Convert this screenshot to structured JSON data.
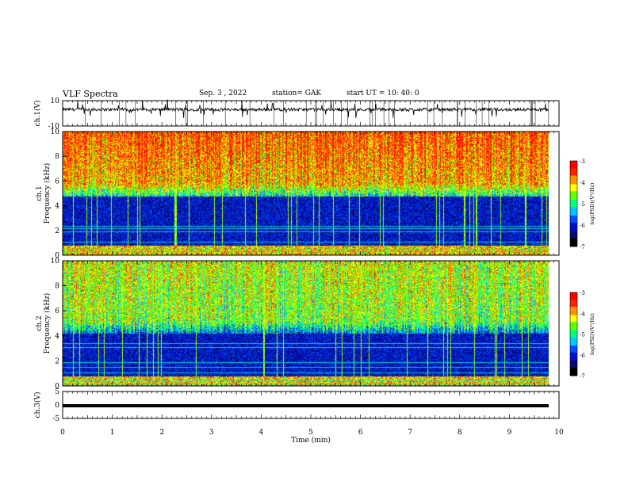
{
  "header": {
    "title": "VLF Spectra",
    "date": "Sep. 3  , 2022",
    "station": "station= GAK",
    "start_ut": "start  UT  =   10: 40: 0"
  },
  "chart_data": [
    {
      "type": "line",
      "panel": "ch1-waveform",
      "ylabel": "ch.1(V)",
      "ylim": [
        -10,
        10
      ],
      "yticks": [
        "10",
        "-10"
      ],
      "xlim": [
        0,
        10
      ],
      "baseline": 3,
      "noise_amplitude": 1.2,
      "color": "#000000"
    },
    {
      "type": "heatmap",
      "panel": "ch1-spectrogram",
      "ylabel_channel": "ch.1",
      "ylabel": "Frequency (kHz)",
      "ylim": [
        0,
        10
      ],
      "yticks": [
        "0",
        "2",
        "4",
        "6",
        "8",
        "10"
      ],
      "xlim": [
        0,
        9.83
      ],
      "colorbar": {
        "label": "log(PSD)(V²/Hz)",
        "ticks": [
          "-3",
          "-4",
          "-5",
          "-6",
          "-7"
        ],
        "range": [
          -7,
          -3
        ]
      },
      "bands_khz": [
        0.3,
        0.5,
        1.1,
        1.9,
        2.2,
        2.4
      ],
      "noise_floor_khz": 4.8
    },
    {
      "type": "heatmap",
      "panel": "ch2-spectrogram",
      "ylabel_channel": "ch.2",
      "ylabel": "Frequency (kHz)",
      "ylim": [
        0,
        10
      ],
      "yticks": [
        "0",
        "2",
        "4",
        "6",
        "8",
        "10"
      ],
      "xlim": [
        0,
        9.83
      ],
      "colorbar": {
        "label": "log(PSD)(V²/Hz)",
        "ticks": [
          "-3",
          "-4",
          "-5",
          "-6",
          "-7"
        ],
        "range": [
          -7,
          -3
        ]
      },
      "bands_khz": [
        0.2,
        0.45,
        1.1,
        1.55,
        1.9,
        3.1,
        3.4
      ],
      "noise_floor_khz": 4.2
    },
    {
      "type": "line",
      "panel": "ch3-waveform",
      "ylabel": "ch.3(V)",
      "ylim": [
        -5,
        5
      ],
      "yticks": [
        "5",
        "0",
        "-5"
      ],
      "xlim": [
        0,
        10
      ],
      "constant_value": 0,
      "color": "#000000",
      "xlabel": "Time  (min)",
      "xticks": [
        "0",
        "1",
        "2",
        "3",
        "4",
        "5",
        "6",
        "7",
        "8",
        "9",
        "10"
      ]
    }
  ],
  "colormap": [
    "#000000",
    "#0a0a6e",
    "#0010c8",
    "#0050ff",
    "#00c8ff",
    "#00ff80",
    "#60ff00",
    "#ffff00",
    "#ff9000",
    "#ff2000",
    "#ff0000"
  ]
}
